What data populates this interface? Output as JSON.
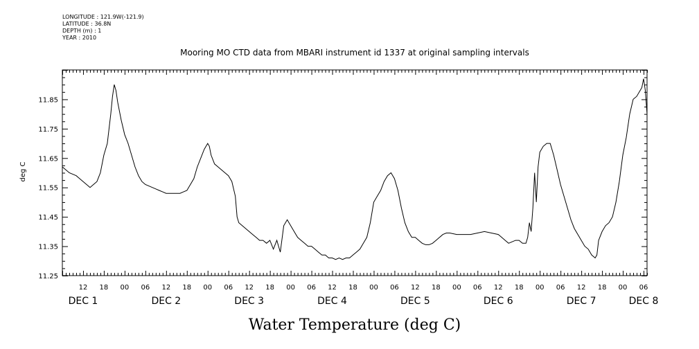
{
  "header_meta": {
    "longitude": "LONGITUDE : 121.9W(-121.9)",
    "latitude": "LATITUDE : 36.8N",
    "depth": "DEPTH (m) : 1",
    "year": "YEAR : 2010"
  },
  "chart_data": {
    "type": "line",
    "title": "Mooring MO CTD data from MBARI instrument id 1337 at original sampling intervals",
    "footer_title": "Water Temperature (deg C)",
    "ylabel": "deg C",
    "xlabel": "",
    "ylim": [
      11.25,
      11.95
    ],
    "xlim_hours": [
      6,
      175
    ],
    "yticks": [
      "11.25",
      "11.35",
      "11.45",
      "11.55",
      "11.65",
      "11.75",
      "11.85"
    ],
    "xticks_hours": [
      {
        "h": 12,
        "label": "12"
      },
      {
        "h": 18,
        "label": "18"
      },
      {
        "h": 24,
        "label": "00"
      },
      {
        "h": 30,
        "label": "06"
      },
      {
        "h": 36,
        "label": "12"
      },
      {
        "h": 42,
        "label": "18"
      },
      {
        "h": 48,
        "label": "00"
      },
      {
        "h": 54,
        "label": "06"
      },
      {
        "h": 60,
        "label": "12"
      },
      {
        "h": 66,
        "label": "18"
      },
      {
        "h": 72,
        "label": "00"
      },
      {
        "h": 78,
        "label": "06"
      },
      {
        "h": 84,
        "label": "12"
      },
      {
        "h": 90,
        "label": "18"
      },
      {
        "h": 96,
        "label": "00"
      },
      {
        "h": 102,
        "label": "06"
      },
      {
        "h": 108,
        "label": "12"
      },
      {
        "h": 114,
        "label": "18"
      },
      {
        "h": 120,
        "label": "00"
      },
      {
        "h": 126,
        "label": "06"
      },
      {
        "h": 132,
        "label": "12"
      },
      {
        "h": 138,
        "label": "18"
      },
      {
        "h": 144,
        "label": "00"
      },
      {
        "h": 150,
        "label": "06"
      },
      {
        "h": 156,
        "label": "12"
      },
      {
        "h": 162,
        "label": "18"
      },
      {
        "h": 168,
        "label": "00"
      },
      {
        "h": 174,
        "label": "06"
      }
    ],
    "day_labels": [
      {
        "h": 12,
        "label": "DEC 1"
      },
      {
        "h": 36,
        "label": "DEC 2"
      },
      {
        "h": 60,
        "label": "DEC 3"
      },
      {
        "h": 84,
        "label": "DEC 4"
      },
      {
        "h": 108,
        "label": "DEC 5"
      },
      {
        "h": 132,
        "label": "DEC 6"
      },
      {
        "h": 156,
        "label": "DEC 7"
      },
      {
        "h": 174,
        "label": "DEC 8"
      }
    ],
    "series": [
      {
        "points": [
          [
            6,
            11.62
          ],
          [
            7,
            11.61
          ],
          [
            8,
            11.6
          ],
          [
            9,
            11.595
          ],
          [
            10,
            11.59
          ],
          [
            11,
            11.58
          ],
          [
            12,
            11.57
          ],
          [
            13,
            11.56
          ],
          [
            14,
            11.55
          ],
          [
            15,
            11.56
          ],
          [
            16,
            11.57
          ],
          [
            17,
            11.6
          ],
          [
            18,
            11.66
          ],
          [
            19,
            11.7
          ],
          [
            20,
            11.8
          ],
          [
            20.5,
            11.86
          ],
          [
            21,
            11.9
          ],
          [
            21.5,
            11.88
          ],
          [
            22,
            11.84
          ],
          [
            23,
            11.78
          ],
          [
            24,
            11.73
          ],
          [
            25,
            11.7
          ],
          [
            26,
            11.66
          ],
          [
            27,
            11.62
          ],
          [
            28,
            11.59
          ],
          [
            29,
            11.57
          ],
          [
            30,
            11.56
          ],
          [
            31,
            11.555
          ],
          [
            32,
            11.55
          ],
          [
            33,
            11.545
          ],
          [
            34,
            11.54
          ],
          [
            35,
            11.535
          ],
          [
            36,
            11.53
          ],
          [
            37,
            11.53
          ],
          [
            38,
            11.53
          ],
          [
            39,
            11.53
          ],
          [
            40,
            11.53
          ],
          [
            41,
            11.535
          ],
          [
            42,
            11.54
          ],
          [
            43,
            11.56
          ],
          [
            44,
            11.58
          ],
          [
            45,
            11.62
          ],
          [
            46,
            11.65
          ],
          [
            47,
            11.68
          ],
          [
            48,
            11.7
          ],
          [
            48.5,
            11.69
          ],
          [
            49,
            11.66
          ],
          [
            50,
            11.63
          ],
          [
            51,
            11.62
          ],
          [
            52,
            11.61
          ],
          [
            53,
            11.6
          ],
          [
            54,
            11.59
          ],
          [
            55,
            11.57
          ],
          [
            56,
            11.52
          ],
          [
            56.5,
            11.45
          ],
          [
            57,
            11.43
          ],
          [
            58,
            11.42
          ],
          [
            59,
            11.41
          ],
          [
            60,
            11.4
          ],
          [
            61,
            11.39
          ],
          [
            62,
            11.38
          ],
          [
            63,
            11.37
          ],
          [
            64,
            11.37
          ],
          [
            65,
            11.36
          ],
          [
            66,
            11.37
          ],
          [
            67,
            11.34
          ],
          [
            68,
            11.37
          ],
          [
            69,
            11.33
          ],
          [
            70,
            11.42
          ],
          [
            71,
            11.44
          ],
          [
            72,
            11.42
          ],
          [
            73,
            11.4
          ],
          [
            74,
            11.38
          ],
          [
            75,
            11.37
          ],
          [
            76,
            11.36
          ],
          [
            77,
            11.35
          ],
          [
            78,
            11.35
          ],
          [
            79,
            11.34
          ],
          [
            80,
            11.33
          ],
          [
            81,
            11.32
          ],
          [
            82,
            11.32
          ],
          [
            83,
            11.31
          ],
          [
            84,
            11.31
          ],
          [
            85,
            11.305
          ],
          [
            86,
            11.31
          ],
          [
            87,
            11.305
          ],
          [
            88,
            11.31
          ],
          [
            89,
            11.31
          ],
          [
            90,
            11.32
          ],
          [
            91,
            11.33
          ],
          [
            92,
            11.34
          ],
          [
            93,
            11.36
          ],
          [
            94,
            11.38
          ],
          [
            95,
            11.43
          ],
          [
            96,
            11.5
          ],
          [
            97,
            11.52
          ],
          [
            98,
            11.54
          ],
          [
            99,
            11.57
          ],
          [
            100,
            11.59
          ],
          [
            101,
            11.6
          ],
          [
            102,
            11.58
          ],
          [
            103,
            11.54
          ],
          [
            104,
            11.48
          ],
          [
            105,
            11.43
          ],
          [
            106,
            11.4
          ],
          [
            107,
            11.38
          ],
          [
            108,
            11.38
          ],
          [
            109,
            11.37
          ],
          [
            110,
            11.36
          ],
          [
            111,
            11.355
          ],
          [
            112,
            11.355
          ],
          [
            113,
            11.36
          ],
          [
            114,
            11.37
          ],
          [
            115,
            11.38
          ],
          [
            116,
            11.39
          ],
          [
            117,
            11.395
          ],
          [
            118,
            11.395
          ],
          [
            120,
            11.39
          ],
          [
            122,
            11.39
          ],
          [
            124,
            11.39
          ],
          [
            126,
            11.395
          ],
          [
            128,
            11.4
          ],
          [
            130,
            11.395
          ],
          [
            132,
            11.39
          ],
          [
            133,
            11.38
          ],
          [
            134,
            11.37
          ],
          [
            135,
            11.36
          ],
          [
            136,
            11.365
          ],
          [
            137,
            11.37
          ],
          [
            138,
            11.37
          ],
          [
            139,
            11.36
          ],
          [
            140,
            11.36
          ],
          [
            140.5,
            11.38
          ],
          [
            141,
            11.43
          ],
          [
            141.5,
            11.4
          ],
          [
            142,
            11.48
          ],
          [
            142.5,
            11.6
          ],
          [
            143,
            11.5
          ],
          [
            143.5,
            11.62
          ],
          [
            144,
            11.67
          ],
          [
            145,
            11.69
          ],
          [
            146,
            11.7
          ],
          [
            147,
            11.7
          ],
          [
            148,
            11.66
          ],
          [
            149,
            11.61
          ],
          [
            150,
            11.56
          ],
          [
            151,
            11.52
          ],
          [
            152,
            11.48
          ],
          [
            153,
            11.44
          ],
          [
            154,
            11.41
          ],
          [
            155,
            11.39
          ],
          [
            156,
            11.37
          ],
          [
            157,
            11.35
          ],
          [
            158,
            11.34
          ],
          [
            159,
            11.32
          ],
          [
            160,
            11.31
          ],
          [
            160.5,
            11.32
          ],
          [
            161,
            11.37
          ],
          [
            162,
            11.4
          ],
          [
            163,
            11.42
          ],
          [
            164,
            11.43
          ],
          [
            165,
            11.45
          ],
          [
            166,
            11.5
          ],
          [
            167,
            11.57
          ],
          [
            168,
            11.66
          ],
          [
            169,
            11.72
          ],
          [
            170,
            11.8
          ],
          [
            171,
            11.85
          ],
          [
            172,
            11.86
          ],
          [
            173,
            11.88
          ],
          [
            173.5,
            11.89
          ],
          [
            174,
            11.92
          ],
          [
            174.5,
            11.88
          ],
          [
            175,
            11.8
          ]
        ]
      }
    ]
  }
}
